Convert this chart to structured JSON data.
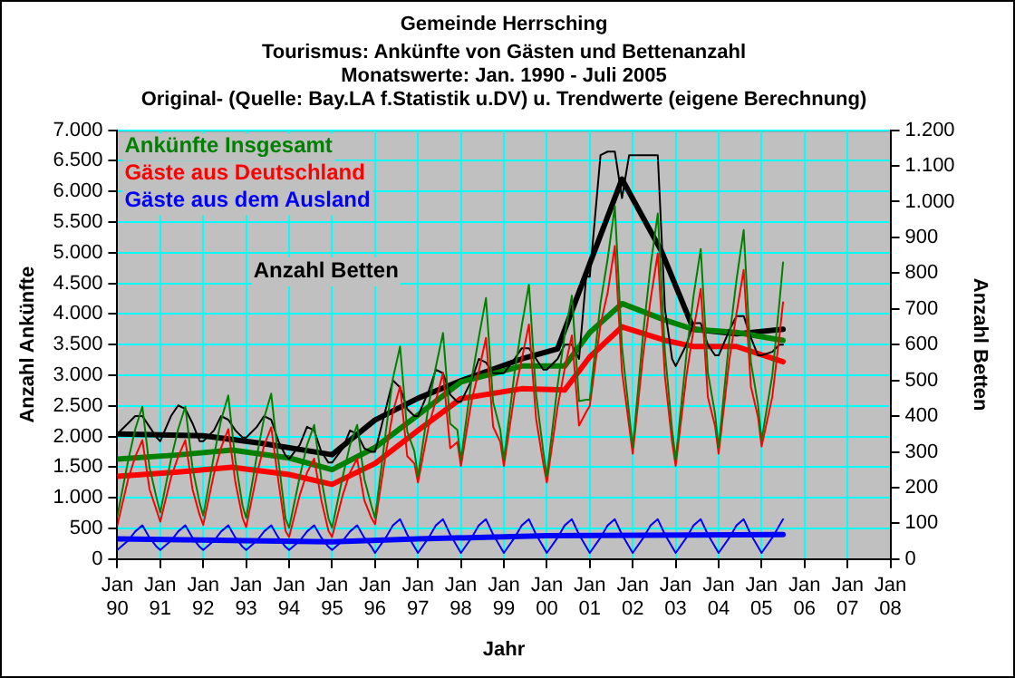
{
  "chart_data": {
    "type": "line",
    "title": "Gemeinde Herrsching",
    "subtitle": "Tourismus: Ankünfte von Gästen und Bettenanzahl\nMonatswerte: Jan. 1990 - Juli 2005\nOriginal- (Quelle: Bay.LA f.Statistik u.DV) u. Trendwerte (eigene Berechnung)",
    "xlabel": "Jahr",
    "ylabel": "Anzahl Ankünfte",
    "y2label": "Anzahl Betten",
    "annotations": [
      "Anzahl Betten"
    ],
    "x": [
      "1990-01",
      "1990-04",
      "1990-06",
      "1990-08",
      "1990-10",
      "1990-12",
      "1991-01",
      "1991-04",
      "1991-06",
      "1991-08",
      "1991-10",
      "1991-12",
      "1992-01",
      "1992-04",
      "1992-06",
      "1992-08",
      "1992-10",
      "1992-12",
      "1993-01",
      "1993-04",
      "1993-06",
      "1993-08",
      "1993-10",
      "1993-12",
      "1994-01",
      "1994-04",
      "1994-06",
      "1994-08",
      "1994-10",
      "1994-12",
      "1995-01",
      "1995-04",
      "1995-06",
      "1995-08",
      "1995-10",
      "1995-12",
      "1996-01",
      "1996-04",
      "1996-06",
      "1996-08",
      "1996-10",
      "1996-12",
      "1997-01",
      "1997-04",
      "1997-06",
      "1997-08",
      "1997-10",
      "1997-12",
      "1998-01",
      "1998-04",
      "1998-06",
      "1998-08",
      "1998-10",
      "1998-12",
      "1999-01",
      "1999-04",
      "1999-06",
      "1999-08",
      "1999-10",
      "1999-12",
      "2000-01",
      "2000-04",
      "2000-06",
      "2000-08",
      "2000-10",
      "2000-12",
      "2001-01",
      "2001-04",
      "2001-06",
      "2001-08",
      "2001-10",
      "2001-12",
      "2002-01",
      "2002-04",
      "2002-06",
      "2002-08",
      "2002-10",
      "2002-12",
      "2003-01",
      "2003-04",
      "2003-06",
      "2003-08",
      "2003-10",
      "2003-12",
      "2004-01",
      "2004-04",
      "2004-06",
      "2004-08",
      "2004-10",
      "2004-12",
      "2005-01",
      "2005-04",
      "2005-06",
      "2005-07"
    ],
    "series": [
      {
        "name": "Ankünfte Insgesamt",
        "color": "#008000",
        "values": [
          700,
          1600,
          2120,
          2490,
          1490,
          990,
          760,
          1630,
          2120,
          2490,
          1490,
          920,
          710,
          1690,
          2270,
          2670,
          1600,
          870,
          670,
          1690,
          2300,
          2700,
          1620,
          660,
          510,
          1350,
          1860,
          2190,
          1310,
          660,
          510,
          1350,
          1860,
          2190,
          1310,
          870,
          670,
          2070,
          2950,
          3470,
          2080,
          1760,
          1350,
          2520,
          3140,
          3690,
          2210,
          2110,
          1620,
          2940,
          3620,
          4260,
          2560,
          2110,
          1620,
          3050,
          3810,
          4480,
          2690,
          1760,
          1350,
          2830,
          3660,
          4300,
          2580,
          2600,
          2600,
          4180,
          4900,
          5760,
          3460,
          2370,
          1820,
          3730,
          4790,
          5640,
          3380,
          2110,
          1620,
          3340,
          4300,
          5060,
          3040,
          2370,
          1820,
          3600,
          4560,
          5370,
          3220,
          2520,
          1940,
          3000,
          4200,
          4840
        ]
      },
      {
        "name": "Gäste aus Deutschland",
        "color": "#ff0000",
        "values": [
          550,
          1300,
          1670,
          1940,
          1140,
          790,
          610,
          1330,
          1670,
          1940,
          1140,
          720,
          560,
          1390,
          1820,
          2120,
          1250,
          670,
          520,
          1390,
          1850,
          2150,
          1270,
          460,
          360,
          1050,
          1410,
          1640,
          960,
          460,
          360,
          1050,
          1410,
          1640,
          960,
          670,
          570,
          1720,
          2400,
          2820,
          1680,
          1560,
          1250,
          2170,
          2590,
          3040,
          1810,
          1910,
          1520,
          2590,
          3070,
          3610,
          2160,
          1910,
          1520,
          2700,
          3260,
          3830,
          2290,
          1560,
          1250,
          2480,
          3110,
          3650,
          2180,
          2400,
          2500,
          3830,
          4350,
          5110,
          3060,
          2170,
          1720,
          3380,
          4240,
          4990,
          2980,
          1910,
          1520,
          2990,
          3750,
          4410,
          2640,
          2170,
          1720,
          3250,
          4010,
          4720,
          2820,
          2320,
          1840,
          2650,
          3650,
          4190
        ]
      },
      {
        "name": "Gäste aus dem Ausland",
        "color": "#0000ff",
        "values": [
          150,
          300,
          450,
          550,
          350,
          200,
          150,
          300,
          450,
          550,
          350,
          200,
          150,
          300,
          450,
          550,
          350,
          200,
          150,
          300,
          450,
          550,
          350,
          200,
          150,
          300,
          450,
          550,
          350,
          200,
          150,
          300,
          450,
          550,
          350,
          200,
          100,
          350,
          550,
          650,
          400,
          200,
          100,
          350,
          550,
          650,
          400,
          200,
          100,
          350,
          550,
          650,
          400,
          200,
          100,
          350,
          550,
          650,
          400,
          200,
          100,
          350,
          550,
          650,
          400,
          200,
          100,
          350,
          550,
          650,
          400,
          200,
          100,
          350,
          550,
          650,
          400,
          200,
          100,
          350,
          550,
          650,
          400,
          200,
          100,
          350,
          550,
          650,
          400,
          200,
          100,
          350,
          550,
          650
        ]
      },
      {
        "color": "#000000",
        "axis": "y2",
        "values": [
          350,
          380,
          400,
          400,
          370,
          340,
          330,
          400,
          430,
          420,
          380,
          330,
          330,
          360,
          400,
          390,
          360,
          340,
          340,
          370,
          400,
          390,
          330,
          290,
          280,
          320,
          370,
          360,
          300,
          270,
          270,
          310,
          360,
          350,
          310,
          300,
          300,
          420,
          500,
          480,
          420,
          400,
          400,
          470,
          530,
          520,
          460,
          440,
          440,
          500,
          560,
          550,
          520,
          520,
          520,
          560,
          590,
          590,
          560,
          530,
          530,
          560,
          600,
          600,
          560,
          790,
          790,
          1130,
          1140,
          1140,
          1010,
          1130,
          1130,
          1130,
          1130,
          1130,
          700,
          560,
          540,
          600,
          660,
          660,
          600,
          570,
          570,
          640,
          680,
          680,
          620,
          570,
          570,
          580,
          600,
          600
        ]
      },
      {
        "color": "#008000",
        "x": [
          "1990-01",
          "1991-06",
          "1992-09",
          "1994-01",
          "1995-01",
          "1996-01",
          "1997-01",
          "1998-01",
          "1999-06",
          "2000-06",
          "2001-01",
          "2001-10",
          "2002-10",
          "2003-06",
          "2004-06",
          "2005-07"
        ],
        "values": [
          1630,
          1700,
          1780,
          1650,
          1460,
          1820,
          2350,
          2890,
          3150,
          3150,
          3700,
          4170,
          3900,
          3750,
          3700,
          3570
        ]
      },
      {
        "color": "#ff0000",
        "x": [
          "1990-01",
          "1991-06",
          "1992-09",
          "1994-01",
          "1995-01",
          "1996-01",
          "1997-01",
          "1998-01",
          "1999-06",
          "2000-06",
          "2001-01",
          "2001-10",
          "2002-10",
          "2003-06",
          "2004-06",
          "2005-07"
        ],
        "values": [
          1350,
          1420,
          1500,
          1380,
          1220,
          1560,
          2100,
          2620,
          2780,
          2760,
          3300,
          3790,
          3570,
          3470,
          3470,
          3220
        ]
      },
      {
        "color": "#0000ff",
        "x": [
          "1990-01",
          "1995-01",
          "1997-01",
          "2000-01",
          "2005-07"
        ],
        "values": [
          330,
          280,
          330,
          380,
          400
        ]
      },
      {
        "color": "#000000",
        "axis": "y2",
        "x": [
          "1990-01",
          "1992-01",
          "1993-06",
          "1995-01",
          "1996-01",
          "1997-01",
          "1998-01",
          "1999-06",
          "2000-04",
          "2001-01",
          "2001-10",
          "2002-09",
          "2003-06",
          "2004-06",
          "2005-07"
        ],
        "values": [
          350,
          345,
          323,
          292,
          389,
          450,
          499,
          560,
          588,
          827,
          1063,
          862,
          643,
          630,
          643
        ]
      }
    ],
    "xlim": [
      "1990-01",
      "2008-01"
    ],
    "xticks": [
      {
        "value": "1990-01",
        "label": "Jan 90"
      },
      {
        "value": "1991-01",
        "label": "Jan 91"
      },
      {
        "value": "1992-01",
        "label": "Jan 92"
      },
      {
        "value": "1993-01",
        "label": "Jan 93"
      },
      {
        "value": "1994-01",
        "label": "Jan 94"
      },
      {
        "value": "1995-01",
        "label": "Jan 95"
      },
      {
        "value": "1996-01",
        "label": "Jan 96"
      },
      {
        "value": "1997-01",
        "label": "Jan 97"
      },
      {
        "value": "1998-01",
        "label": "Jan 98"
      },
      {
        "value": "1999-01",
        "label": "Jan 99"
      },
      {
        "value": "2000-01",
        "label": "Jan 00"
      },
      {
        "value": "2001-01",
        "label": "Jan 01"
      },
      {
        "value": "2002-01",
        "label": "Jan 02"
      },
      {
        "value": "2003-01",
        "label": "Jan 03"
      },
      {
        "value": "2004-01",
        "label": "Jan 04"
      },
      {
        "value": "2005-01",
        "label": "Jan 05"
      },
      {
        "value": "2006-01",
        "label": "Jan 06"
      },
      {
        "value": "2007-01",
        "label": "Jan 07"
      },
      {
        "value": "2008-01",
        "label": "Jan 08"
      }
    ],
    "ylim": [
      0,
      7000
    ],
    "yticks": [
      0,
      500,
      {
        "value": 1000,
        "label": "1.000"
      },
      {
        "value": 1500,
        "label": "1.500"
      },
      {
        "value": 2000,
        "label": "2.000"
      },
      {
        "value": 2500,
        "label": "2.500"
      },
      {
        "value": 3000,
        "label": "3.000"
      },
      {
        "value": 3500,
        "label": "3.500"
      },
      {
        "value": 4000,
        "label": "4.000"
      },
      {
        "value": 4500,
        "label": "4.500"
      },
      {
        "value": 5000,
        "label": "5.000"
      },
      {
        "value": 5500,
        "label": "5.500"
      },
      {
        "value": 6000,
        "label": "6.000"
      },
      {
        "value": 6500,
        "label": "6.500"
      },
      {
        "value": 7000,
        "label": "7.000"
      }
    ],
    "y2lim": [
      0,
      1200
    ],
    "y2ticks": [
      0,
      100,
      200,
      300,
      400,
      500,
      600,
      700,
      800,
      900,
      {
        "value": 1000,
        "label": "1.000"
      },
      {
        "value": 1100,
        "label": "1.100"
      },
      {
        "value": 1200,
        "label": "1.200"
      }
    ],
    "grid": true,
    "legend": "top left",
    "marker": "none",
    "line_style": "solid"
  }
}
